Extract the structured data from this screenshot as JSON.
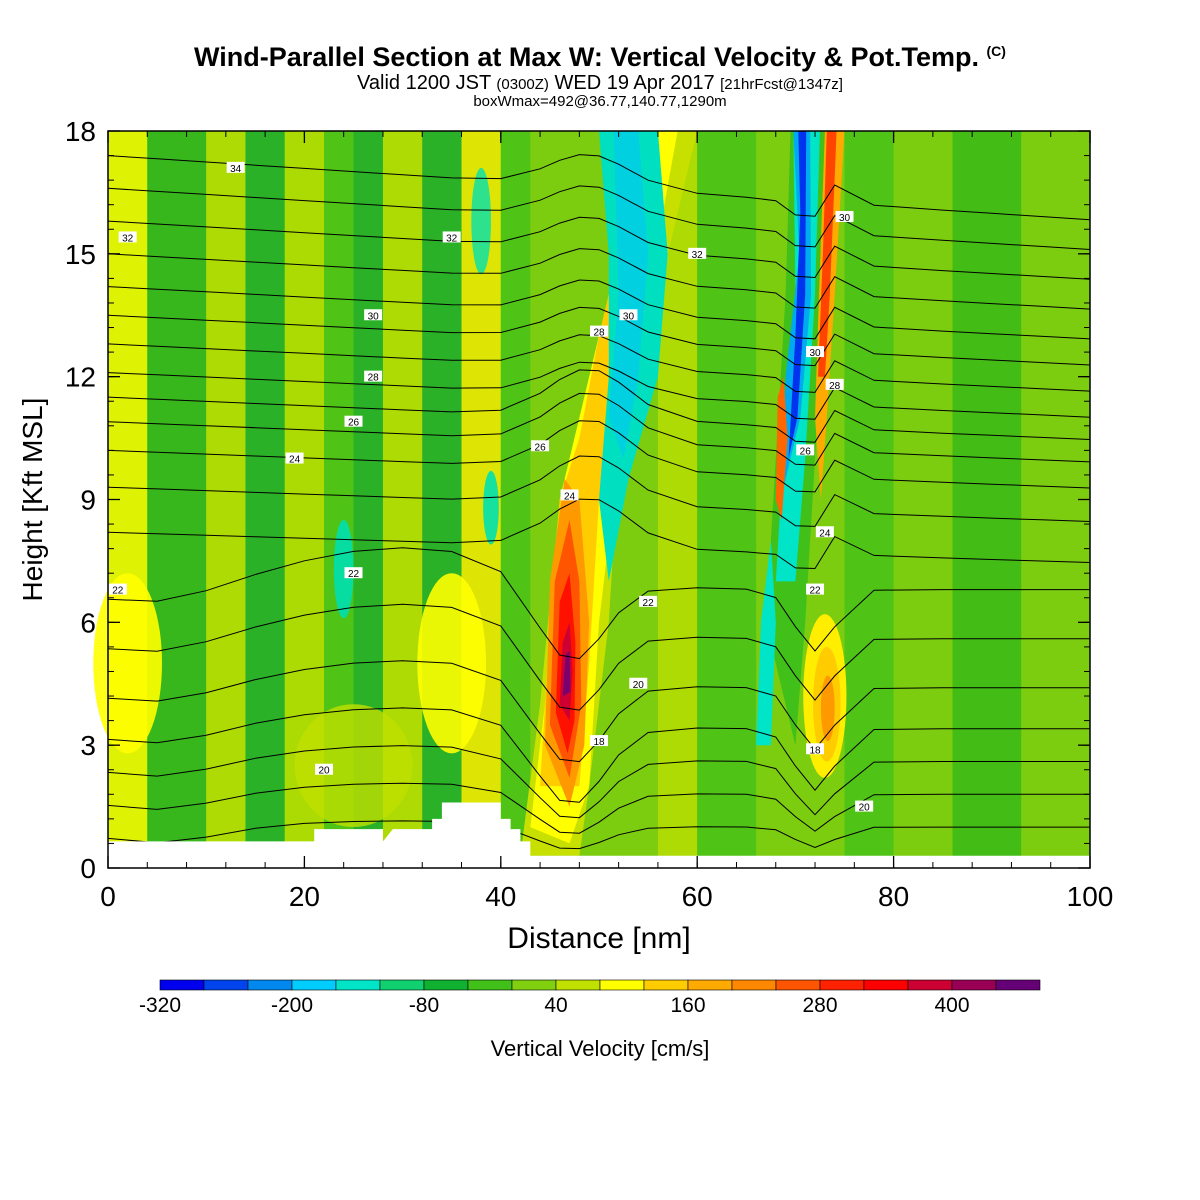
{
  "header": {
    "title_main": "Wind-Parallel Section at Max W: Vertical Velocity & Pot.Temp.",
    "title_mark": "(C)",
    "valid_a": "Valid 1200 JST ",
    "valid_b": "(0300Z)",
    "valid_c": " WED 19 Apr 2017 ",
    "valid_d": "[21hrFcst@1347z]",
    "box_info": "boxWmax=492@36.77,140.77,1290m"
  },
  "chart_data": {
    "type": "heatmap",
    "xlabel": "Distance [nm]",
    "ylabel": "Height [Kft MSL]",
    "xlim": [
      0,
      100
    ],
    "ylim": [
      0,
      18
    ],
    "x_ticks": [
      "0",
      "20",
      "40",
      "60",
      "80",
      "100"
    ],
    "y_ticks": [
      "0",
      "3",
      "6",
      "9",
      "12",
      "15",
      "18"
    ],
    "colorbar": {
      "label": "Vertical Velocity [cm/s]",
      "tick_labels": [
        "-320",
        "-200",
        "-80",
        "40",
        "160",
        "280",
        "400"
      ],
      "levels": [
        -320,
        -280,
        -240,
        -200,
        -160,
        -120,
        -80,
        -40,
        0,
        40,
        80,
        120,
        160,
        200,
        240,
        280,
        320,
        360,
        400,
        440,
        480
      ],
      "colors": [
        "#0000ee",
        "#0044ee",
        "#0088ee",
        "#00ccff",
        "#00e5c8",
        "#10d070",
        "#10b030",
        "#40c018",
        "#80d010",
        "#c0e000",
        "#ffff00",
        "#ffcc00",
        "#ffaa00",
        "#ff8800",
        "#ff5500",
        "#ff2200",
        "#ff0000",
        "#cc0033",
        "#990055",
        "#660077"
      ]
    },
    "features": [
      {
        "kind": "updraft",
        "x": 47,
        "y_base": 3.5,
        "y_top": 9.5,
        "peak": 480
      },
      {
        "kind": "downdraft",
        "x": 53,
        "y_base": 8,
        "y_top": 18,
        "peak": -160
      },
      {
        "kind": "downdraft",
        "x": 71,
        "y_base": 9,
        "y_top": 18,
        "peak": -320
      },
      {
        "kind": "updraft",
        "x": 73,
        "y_base": 2,
        "y_top": 6,
        "peak": 200
      }
    ],
    "terrain_nm_kft": [
      [
        0,
        0.65
      ],
      [
        21,
        0.65
      ],
      [
        21,
        0.95
      ],
      [
        28,
        0.95
      ],
      [
        28,
        0.65
      ],
      [
        29,
        0.95
      ],
      [
        33,
        0.95
      ],
      [
        33,
        1.2
      ],
      [
        34,
        1.2
      ],
      [
        34,
        1.6
      ],
      [
        40,
        1.6
      ],
      [
        40,
        1.2
      ],
      [
        41,
        1.2
      ],
      [
        41,
        0.95
      ],
      [
        42,
        0.95
      ],
      [
        42,
        0.65
      ],
      [
        43,
        0.65
      ],
      [
        43,
        0.3
      ],
      [
        100,
        0.3
      ]
    ],
    "isentrope_labels": [
      {
        "text": "34",
        "x": 13,
        "y": 17.1
      },
      {
        "text": "32",
        "x": 2,
        "y": 15.4
      },
      {
        "text": "32",
        "x": 35,
        "y": 15.4
      },
      {
        "text": "32",
        "x": 60,
        "y": 15.0
      },
      {
        "text": "30",
        "x": 27,
        "y": 13.5
      },
      {
        "text": "30",
        "x": 53,
        "y": 13.5
      },
      {
        "text": "30",
        "x": 72,
        "y": 12.6
      },
      {
        "text": "30",
        "x": 75,
        "y": 15.9
      },
      {
        "text": "28",
        "x": 27,
        "y": 12.0
      },
      {
        "text": "28",
        "x": 50,
        "y": 13.1
      },
      {
        "text": "28",
        "x": 74,
        "y": 11.8
      },
      {
        "text": "26",
        "x": 25,
        "y": 10.9
      },
      {
        "text": "26",
        "x": 44,
        "y": 10.3
      },
      {
        "text": "26",
        "x": 71,
        "y": 10.2
      },
      {
        "text": "24",
        "x": 19,
        "y": 10.0
      },
      {
        "text": "24",
        "x": 47,
        "y": 9.1
      },
      {
        "text": "24",
        "x": 73,
        "y": 8.2
      },
      {
        "text": "22",
        "x": 1,
        "y": 6.8
      },
      {
        "text": "22",
        "x": 25,
        "y": 7.2
      },
      {
        "text": "22",
        "x": 55,
        "y": 6.5
      },
      {
        "text": "22",
        "x": 72,
        "y": 6.8
      },
      {
        "text": "20",
        "x": 54,
        "y": 4.5
      },
      {
        "text": "20",
        "x": 22,
        "y": 2.4
      },
      {
        "text": "20",
        "x": 77,
        "y": 1.5
      },
      {
        "text": "18",
        "x": 50,
        "y": 3.1
      },
      {
        "text": "18",
        "x": 72,
        "y": 2.9
      }
    ]
  }
}
